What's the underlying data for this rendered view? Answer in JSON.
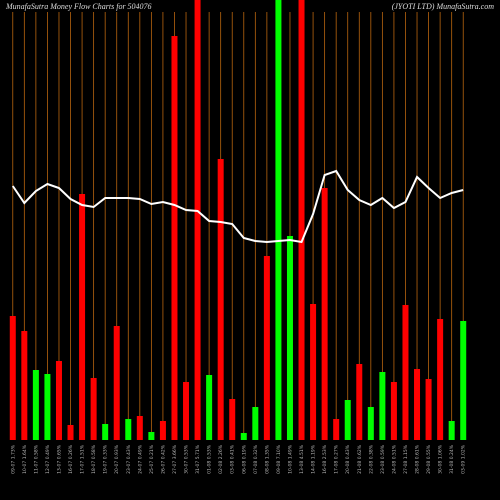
{
  "chart_data": {
    "type": "bar",
    "title": "MunafaSutra  Money Flow  Charts for 504076",
    "subtitle": "(JYOTI LTD) MunafaSutra.com",
    "categories": [
      "09-07 1.73%",
      "10-07 1.64%",
      "11-07 0.58%",
      "12-07 0.49%",
      "13-07 0.65%",
      "16-07 0.26%",
      "17-07 1.51%",
      "18-07 0.58%",
      "19-07 0.33%",
      "20-07 0.93%",
      "23-07 0.43%",
      "24-07 0.49%",
      "25-07 0.21%",
      "26-07 0.42%",
      "27-07 3.66%",
      "30-07 0.53%",
      "31-07 5.71%",
      "01-08 0.53%",
      "02-08 2.26%",
      "03-08 0.41%",
      "06-08 0.19%",
      "07-08 0.32%",
      "08-08 1.35%",
      "09-08 7.10%",
      "10-08 1.49%",
      "13-08 4.51%",
      "14-08 1.19%",
      "16-08 2.53%",
      "17-08 0.27%",
      "20-08 0.43%",
      "21-08 0.62%",
      "22-08 0.38%",
      "23-08 0.59%",
      "24-08 0.51%",
      "27-08 1.15%",
      "28-08 0.61%",
      "29-08 0.55%",
      "30-08 1.06%",
      "31-08 0.24%",
      "03-09 1.02%"
    ],
    "series": [
      {
        "name": "Money Flow",
        "colors": [
          "#ff0000",
          "#ff0000",
          "#00ff00",
          "#00ff00",
          "#ff0000",
          "#ff0000",
          "#ff0000",
          "#ff0000",
          "#00ff00",
          "#ff0000",
          "#00ff00",
          "#ff0000",
          "#00ff00",
          "#ff0000",
          "#ff0000",
          "#ff0000",
          "#ff0000",
          "#00ff00",
          "#ff0000",
          "#ff0000",
          "#00ff00",
          "#00ff00",
          "#ff0000",
          "#00ff00",
          "#00ff00",
          "#ff0000",
          "#ff0000",
          "#ff0000",
          "#ff0000",
          "#00ff00",
          "#ff0000",
          "#00ff00",
          "#00ff00",
          "#ff0000",
          "#ff0000",
          "#ff0000",
          "#ff0000",
          "#ff0000",
          "#00ff00",
          "#00ff00"
        ],
        "values": [
          124,
          109,
          70,
          66,
          79,
          15,
          246,
          62,
          16,
          114,
          21,
          24,
          8,
          19,
          404,
          58,
          450,
          65,
          281,
          41,
          7,
          33,
          184,
          450,
          204,
          450,
          136,
          252,
          21,
          40,
          76,
          33,
          68,
          58,
          135,
          71,
          61,
          121,
          19,
          119
        ]
      },
      {
        "name": "Price",
        "type": "line",
        "color": "#ffffff",
        "values": [
          254,
          237,
          249,
          256,
          252,
          241,
          235,
          233,
          242,
          242,
          242,
          241,
          236,
          238,
          235,
          230,
          229,
          219,
          218,
          216,
          202,
          199,
          198,
          199,
          200,
          198,
          226,
          265,
          269,
          250,
          240,
          235,
          242,
          232,
          238,
          263,
          252,
          242,
          247,
          250
        ]
      }
    ],
    "ylim": [
      0,
      440
    ],
    "grid_color": "#b8650f"
  }
}
